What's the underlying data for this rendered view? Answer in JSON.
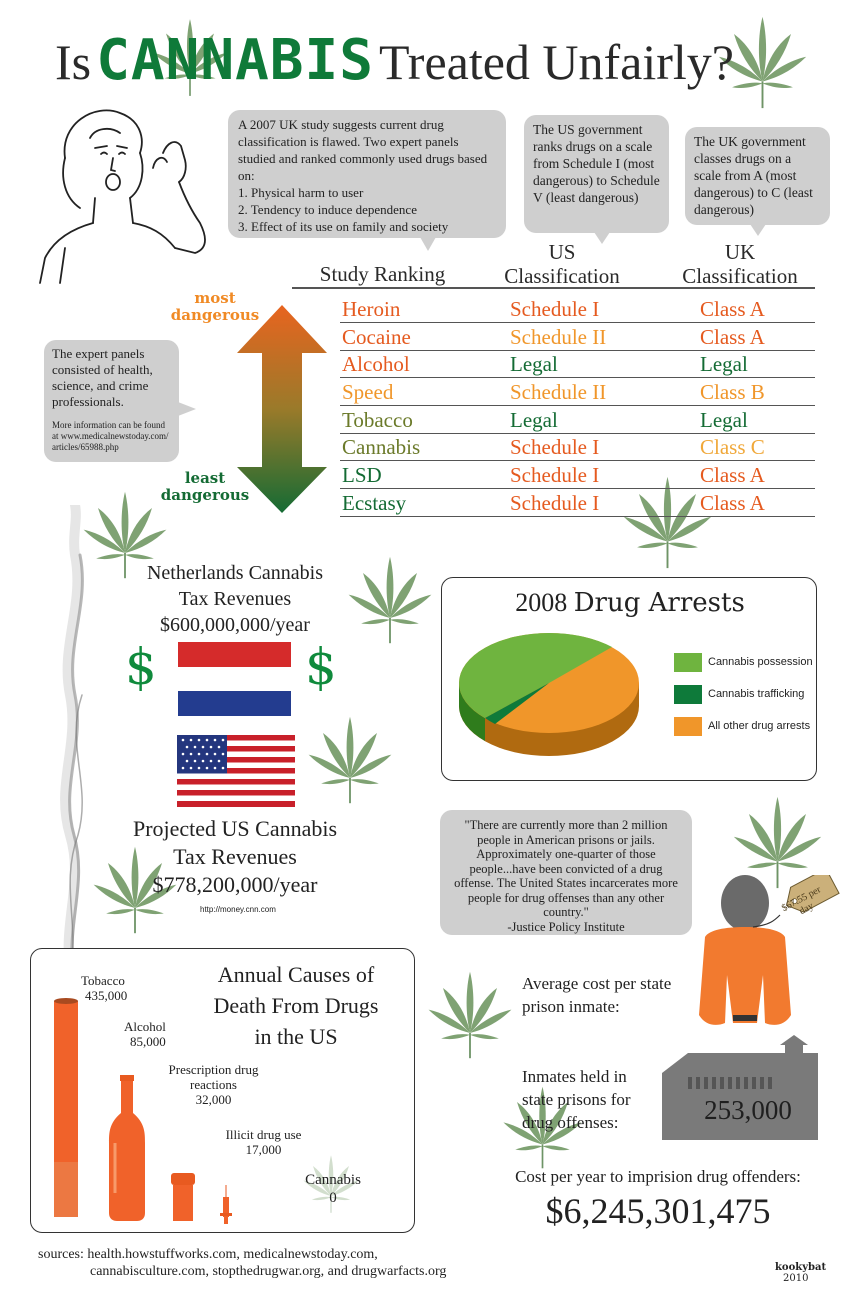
{
  "title": {
    "part1": "Is",
    "highlight": "CANNABIS",
    "part2": "Treated Unfairly?"
  },
  "bubbles": {
    "study": {
      "intro": "A 2007 UK study suggests current drug classification is flawed.  Two expert panels studied and ranked commonly used drugs based on:",
      "criteria": [
        "1. Physical harm to user",
        "2. Tendency to induce dependence",
        "3. Effect of its use on family and society"
      ]
    },
    "us": "The US government ranks drugs on a scale from Schedule I (most dangerous) to Schedule V (least dangerous)",
    "uk": "The UK government classes drugs on a scale from A (most dangerous) to C (least dangerous)",
    "panels": "The expert panels consisted of health, science, and crime professionals.",
    "more_info": "More information can be found at www.medicalnewstoday.com/ articles/65988.php"
  },
  "table": {
    "headers": [
      "Study Ranking",
      "US Classification",
      "UK Classification"
    ],
    "rows": [
      {
        "drug": "Heroin",
        "us": "Schedule I",
        "uk": "Class A"
      },
      {
        "drug": "Cocaine",
        "us": "Schedule II",
        "uk": "Class A"
      },
      {
        "drug": "Alcohol",
        "us": "Legal",
        "uk": "Legal"
      },
      {
        "drug": "Speed",
        "us": "Schedule II",
        "uk": "Class B"
      },
      {
        "drug": "Tobacco",
        "us": "Legal",
        "uk": "Legal"
      },
      {
        "drug": "Cannabis",
        "us": "Schedule I",
        "uk": "Class C"
      },
      {
        "drug": "LSD",
        "us": "Schedule I",
        "uk": "Class A"
      },
      {
        "drug": "Ecstasy",
        "us": "Schedule I",
        "uk": "Class A"
      }
    ]
  },
  "arrow": {
    "top": "most dangerous",
    "bottom": "least dangerous"
  },
  "netherlands": {
    "line1": "Netherlands Cannabis",
    "line2": "Tax Revenues",
    "amount": "$600,000,000/year",
    "dollar": "$"
  },
  "us_tax": {
    "line1": "Projected US Cannabis",
    "line2": "Tax Revenues",
    "amount": "$778,200,000/year",
    "source": "http://money.cnn.com"
  },
  "arrests": {
    "title_year": "2008",
    "title_text": "Drug Arrests",
    "legend": [
      {
        "label": "Cannabis possession",
        "color": "#6fb43f"
      },
      {
        "label": "Cannabis trafficking",
        "color": "#0e7a3a"
      },
      {
        "label": "All other drug arrests",
        "color": "#f0962a"
      }
    ]
  },
  "quote": {
    "text": "\"There are currently more than 2 million people in American prisons or jails. Approximately one-quarter of those people...have been convicted of a drug offense. The United States incarcerates more people for drug offenses than any other country.\"",
    "attribution": "-Justice Policy Institute"
  },
  "inmate": {
    "tag": "$67.55 per day",
    "label": "Average cost per state prison inmate:"
  },
  "held": {
    "label": "Inmates held in state prisons for drug offenses:",
    "count": "253,000"
  },
  "cost": {
    "label": "Cost per year to imprision drug offenders:",
    "amount": "$6,245,301,475"
  },
  "deaths": {
    "title": [
      "Annual Causes of",
      "Death From Drugs",
      "in the US"
    ],
    "items": [
      {
        "name": "Tobacco",
        "value": "435,000"
      },
      {
        "name": "Alcohol",
        "value": "85,000"
      },
      {
        "name": "Prescription drug reactions",
        "value": "32,000"
      },
      {
        "name": "Illicit drug use",
        "value": "17,000"
      },
      {
        "name": "Cannabis",
        "value": "0"
      }
    ]
  },
  "sources": {
    "line1": "sources: health.howstuffworks.com, medicalnewstoday.com,",
    "line2": "cannabisculture.com, stopthedrugwar.org, and drugwarfacts.org"
  },
  "credit": {
    "name": "kookybat",
    "year": "2010"
  },
  "colors": {
    "orange": "#e55a1f",
    "green": "#146b34",
    "bubble": "#cfcfcf"
  }
}
